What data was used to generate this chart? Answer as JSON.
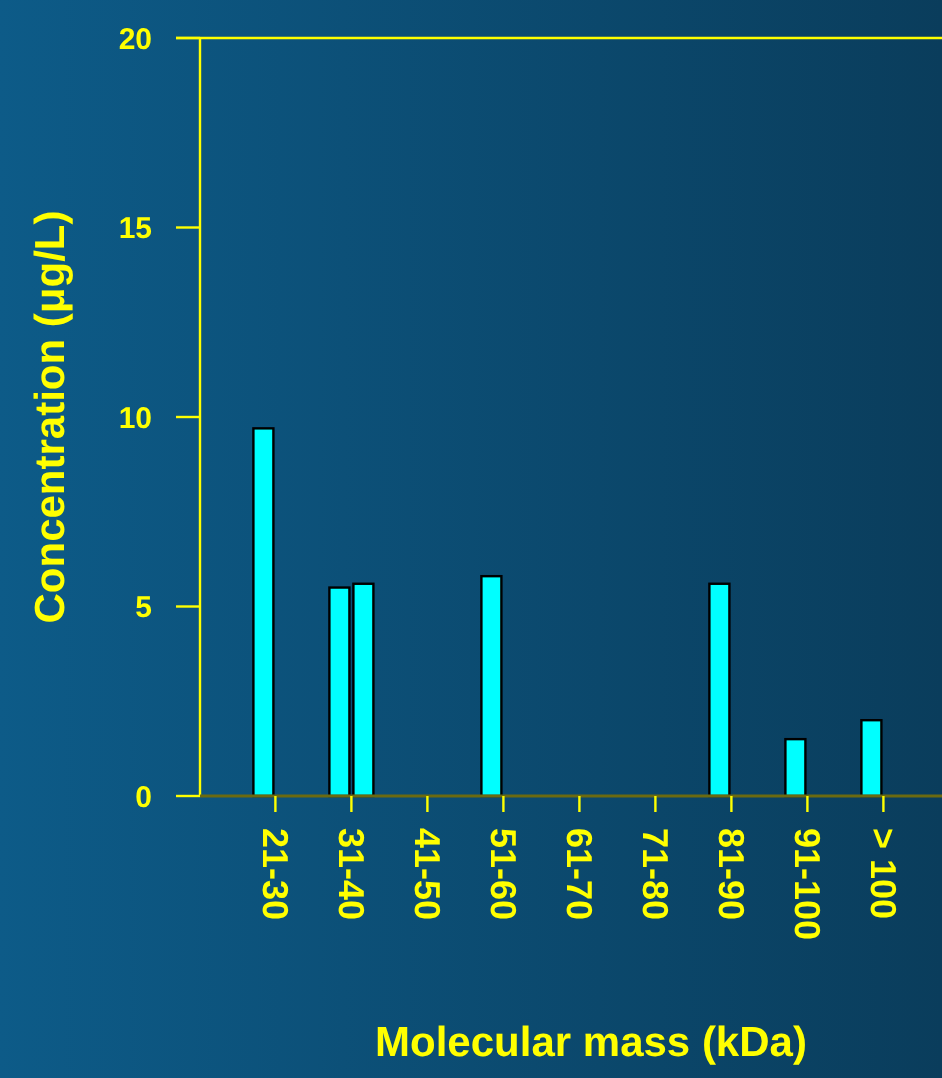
{
  "chart_data": {
    "type": "bar",
    "xlabel": "Molecular mass (kDa)",
    "ylabel": "Concentration (μg/L)",
    "categories": [
      "21-30",
      "31-40",
      "41-50",
      "51-60",
      "61-70",
      "71-80",
      "81-90",
      "91-100",
      "> 100"
    ],
    "series": [
      {
        "color": "#00ffff",
        "values": [
          9.7,
          5.5,
          null,
          5.8,
          null,
          null,
          5.6,
          1.5,
          2.0
        ]
      },
      {
        "color": "#00ffff",
        "values": [
          null,
          5.6,
          null,
          null,
          null,
          null,
          null,
          null,
          null
        ]
      }
    ],
    "ylim": [
      0,
      20
    ],
    "yticks": [
      0,
      5,
      10,
      15,
      20
    ],
    "grid": false
  }
}
